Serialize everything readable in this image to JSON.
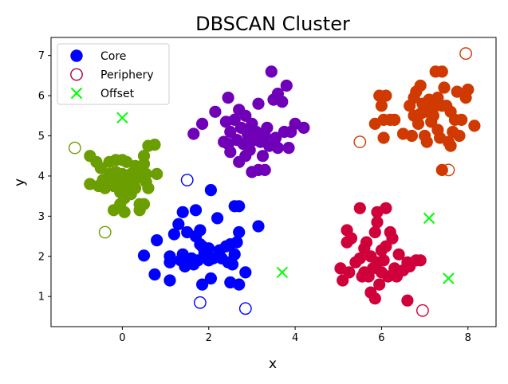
{
  "chart_data": {
    "type": "scatter",
    "title": "DBSCAN Cluster",
    "xlabel": "x",
    "ylabel": "y",
    "xlim": [
      -1.65,
      8.65
    ],
    "ylim": [
      0.25,
      7.45
    ],
    "xticks": [
      0,
      2,
      4,
      6,
      8
    ],
    "yticks": [
      1,
      2,
      3,
      4,
      5,
      6,
      7
    ],
    "grid": false,
    "legend": {
      "position": "top-left",
      "entries": [
        {
          "label": "Core",
          "marker": "filled-circle",
          "color": "#0000ff"
        },
        {
          "label": "Periphery",
          "marker": "hollow-circle",
          "color": "#b0003a"
        },
        {
          "label": "Offset",
          "marker": "x",
          "color": "#00ff00"
        }
      ]
    },
    "clusters": [
      {
        "color": "#6b9e00",
        "core": [
          [
            -0.75,
            4.5
          ],
          [
            -0.6,
            4.35
          ],
          [
            -0.5,
            4.2
          ],
          [
            -0.3,
            4.35
          ],
          [
            -0.15,
            4.4
          ],
          [
            0.0,
            4.4
          ],
          [
            0.1,
            4.35
          ],
          [
            0.3,
            4.25
          ],
          [
            0.5,
            4.3
          ],
          [
            0.5,
            4.5
          ],
          [
            0.6,
            4.75
          ],
          [
            0.75,
            4.78
          ],
          [
            -0.3,
            4.05
          ],
          [
            -0.15,
            4.1
          ],
          [
            0.0,
            4.05
          ],
          [
            0.2,
            4.05
          ],
          [
            0.4,
            4.15
          ],
          [
            0.55,
            4.05
          ],
          [
            0.8,
            4.05
          ],
          [
            -0.45,
            3.9
          ],
          [
            -0.2,
            3.9
          ],
          [
            0.0,
            3.85
          ],
          [
            0.15,
            3.9
          ],
          [
            0.35,
            3.95
          ],
          [
            0.55,
            3.85
          ],
          [
            -0.75,
            3.8
          ],
          [
            -0.55,
            3.75
          ],
          [
            -0.4,
            3.7
          ],
          [
            -0.2,
            3.75
          ],
          [
            0.1,
            3.7
          ],
          [
            0.3,
            3.7
          ],
          [
            0.6,
            3.7
          ],
          [
            -0.05,
            3.6
          ],
          [
            0.2,
            3.55
          ],
          [
            0.05,
            3.45
          ],
          [
            -0.05,
            3.3
          ],
          [
            0.4,
            3.3
          ],
          [
            0.5,
            3.3
          ],
          [
            -0.2,
            3.15
          ],
          [
            0.05,
            3.1
          ],
          [
            0.4,
            3.15
          ]
        ],
        "periphery": [
          [
            -1.1,
            4.7
          ],
          [
            -0.4,
            2.6
          ]
        ]
      },
      {
        "color": "#0000ff",
        "core": [
          [
            0.5,
            2.02
          ],
          [
            0.8,
            2.4
          ],
          [
            0.75,
            1.55
          ],
          [
            1.1,
            2.0
          ],
          [
            1.1,
            1.85
          ],
          [
            1.1,
            1.4
          ],
          [
            1.2,
            2.55
          ],
          [
            1.3,
            2.8
          ],
          [
            1.4,
            3.1
          ],
          [
            1.35,
            1.9
          ],
          [
            1.4,
            2.05
          ],
          [
            1.45,
            1.75
          ],
          [
            1.5,
            2.6
          ],
          [
            1.6,
            1.95
          ],
          [
            1.65,
            1.8
          ],
          [
            1.7,
            2.5
          ],
          [
            1.7,
            3.15
          ],
          [
            1.75,
            1.9
          ],
          [
            1.8,
            2.3
          ],
          [
            1.8,
            2.65
          ],
          [
            1.85,
            2.25
          ],
          [
            1.85,
            1.3
          ],
          [
            1.9,
            2.1
          ],
          [
            2.0,
            2.2
          ],
          [
            2.0,
            1.9
          ],
          [
            2.05,
            1.45
          ],
          [
            2.05,
            3.65
          ],
          [
            2.1,
            1.95
          ],
          [
            2.2,
            2.95
          ],
          [
            2.25,
            2.15
          ],
          [
            2.3,
            1.95
          ],
          [
            2.4,
            2.25
          ],
          [
            2.45,
            1.85
          ],
          [
            2.5,
            2.3
          ],
          [
            2.5,
            1.35
          ],
          [
            2.55,
            1.8
          ],
          [
            2.6,
            2.05
          ],
          [
            2.6,
            3.25
          ],
          [
            2.65,
            2.35
          ],
          [
            2.7,
            3.25
          ],
          [
            2.7,
            2.6
          ],
          [
            2.7,
            1.3
          ],
          [
            2.85,
            1.6
          ],
          [
            3.15,
            2.75
          ]
        ],
        "periphery": [
          [
            1.5,
            3.9
          ],
          [
            1.8,
            0.85
          ],
          [
            2.85,
            0.7
          ]
        ]
      },
      {
        "color": "#7000b8",
        "core": [
          [
            1.65,
            5.05
          ],
          [
            1.85,
            5.3
          ],
          [
            2.15,
            5.6
          ],
          [
            2.35,
            4.85
          ],
          [
            2.4,
            5.35
          ],
          [
            2.45,
            5.95
          ],
          [
            2.45,
            4.8
          ],
          [
            2.5,
            5.1
          ],
          [
            2.5,
            4.6
          ],
          [
            2.6,
            5.4
          ],
          [
            2.65,
            4.9
          ],
          [
            2.7,
            5.65
          ],
          [
            2.7,
            4.35
          ],
          [
            2.75,
            5.2
          ],
          [
            2.8,
            4.8
          ],
          [
            2.85,
            5.5
          ],
          [
            2.85,
            4.5
          ],
          [
            2.9,
            5.05
          ],
          [
            2.95,
            4.65
          ],
          [
            3.0,
            5.3
          ],
          [
            3.0,
            4.1
          ],
          [
            3.05,
            4.9
          ],
          [
            3.1,
            5.1
          ],
          [
            3.15,
            5.8
          ],
          [
            3.15,
            4.15
          ],
          [
            3.2,
            4.85
          ],
          [
            3.25,
            4.5
          ],
          [
            3.3,
            5.0
          ],
          [
            3.3,
            4.15
          ],
          [
            3.35,
            5.2
          ],
          [
            3.4,
            4.75
          ],
          [
            3.45,
            6.6
          ],
          [
            3.5,
            5.9
          ],
          [
            3.55,
            4.95
          ],
          [
            3.6,
            6.05
          ],
          [
            3.6,
            4.7
          ],
          [
            3.7,
            5.85
          ],
          [
            3.75,
            5.1
          ],
          [
            3.8,
            6.25
          ],
          [
            3.85,
            4.7
          ],
          [
            3.9,
            5.1
          ],
          [
            4.0,
            5.3
          ],
          [
            4.2,
            5.2
          ]
        ],
        "periphery": []
      },
      {
        "color": "#d03a00",
        "core": [
          [
            5.85,
            5.3
          ],
          [
            5.95,
            6.0
          ],
          [
            6.0,
            5.75
          ],
          [
            6.05,
            5.4
          ],
          [
            6.05,
            4.95
          ],
          [
            6.1,
            6.0
          ],
          [
            6.2,
            5.4
          ],
          [
            6.3,
            5.4
          ],
          [
            6.5,
            5.05
          ],
          [
            6.65,
            5.75
          ],
          [
            6.7,
            5.0
          ],
          [
            6.75,
            5.5
          ],
          [
            6.75,
            5.95
          ],
          [
            6.8,
            6.1
          ],
          [
            6.85,
            5.3
          ],
          [
            6.9,
            5.55
          ],
          [
            6.9,
            6.25
          ],
          [
            6.95,
            5.8
          ],
          [
            7.0,
            5.0
          ],
          [
            7.0,
            5.6
          ],
          [
            7.05,
            4.85
          ],
          [
            7.1,
            5.9
          ],
          [
            7.15,
            5.35
          ],
          [
            7.2,
            5.5
          ],
          [
            7.2,
            5.7
          ],
          [
            7.25,
            6.6
          ],
          [
            7.3,
            5.15
          ],
          [
            7.3,
            5.95
          ],
          [
            7.35,
            4.95
          ],
          [
            7.4,
            6.6
          ],
          [
            7.4,
            5.75
          ],
          [
            7.4,
            4.15
          ],
          [
            7.45,
            6.2
          ],
          [
            7.5,
            5.75
          ],
          [
            7.55,
            4.85
          ],
          [
            7.6,
            4.75
          ],
          [
            7.6,
            5.6
          ],
          [
            7.65,
            5.1
          ],
          [
            7.7,
            5.4
          ],
          [
            7.75,
            6.1
          ],
          [
            7.8,
            5.0
          ],
          [
            7.85,
            5.4
          ],
          [
            7.95,
            5.95
          ],
          [
            8.0,
            6.15
          ],
          [
            8.15,
            5.25
          ]
        ],
        "periphery": [
          [
            5.5,
            4.85
          ],
          [
            7.55,
            4.15
          ],
          [
            7.95,
            7.05
          ]
        ]
      },
      {
        "color": "#d0003a",
        "core": [
          [
            5.05,
            1.7
          ],
          [
            5.1,
            1.4
          ],
          [
            5.2,
            2.65
          ],
          [
            5.2,
            2.35
          ],
          [
            5.25,
            1.6
          ],
          [
            5.3,
            2.45
          ],
          [
            5.4,
            1.85
          ],
          [
            5.5,
            3.2
          ],
          [
            5.5,
            1.95
          ],
          [
            5.55,
            1.5
          ],
          [
            5.6,
            1.6
          ],
          [
            5.6,
            2.2
          ],
          [
            5.65,
            2.35
          ],
          [
            5.7,
            1.5
          ],
          [
            5.75,
            2.0
          ],
          [
            5.75,
            1.1
          ],
          [
            5.8,
            1.7
          ],
          [
            5.85,
            2.6
          ],
          [
            5.85,
            0.95
          ],
          [
            5.9,
            1.85
          ],
          [
            5.9,
            3.1
          ],
          [
            5.9,
            2.85
          ],
          [
            5.95,
            1.3
          ],
          [
            6.0,
            2.15
          ],
          [
            6.0,
            1.6
          ],
          [
            6.05,
            1.9
          ],
          [
            6.1,
            2.25
          ],
          [
            6.1,
            3.2
          ],
          [
            6.15,
            1.5
          ],
          [
            6.2,
            2.6
          ],
          [
            6.25,
            2.45
          ],
          [
            6.3,
            1.7
          ],
          [
            6.35,
            1.5
          ],
          [
            6.4,
            2.05
          ],
          [
            6.5,
            1.65
          ],
          [
            6.6,
            1.85
          ],
          [
            6.65,
            1.75
          ],
          [
            6.6,
            0.9
          ],
          [
            6.8,
            1.9
          ],
          [
            6.9,
            1.9
          ]
        ],
        "periphery": [
          [
            6.95,
            0.65
          ]
        ]
      }
    ],
    "offset": {
      "color": "#00ff00",
      "points": [
        [
          0.0,
          5.45
        ],
        [
          3.7,
          1.6
        ],
        [
          7.1,
          2.95
        ],
        [
          7.55,
          1.45
        ]
      ]
    }
  }
}
